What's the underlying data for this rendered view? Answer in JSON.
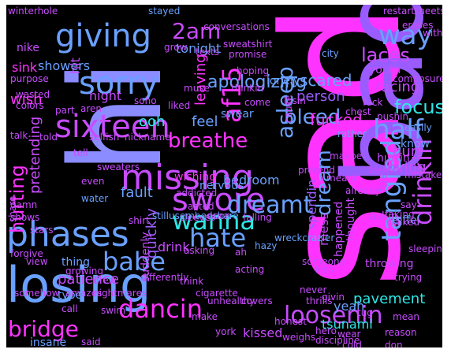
{
  "colors": {
    "magenta": "#ff33ff",
    "violet": "#c84cff",
    "purple": "#9b5cff",
    "periwinkle": "#8b8cff",
    "blue": "#6aa0ff",
    "cyan": "#2ee6e6",
    "background": "#000000"
  },
  "words": [
    {
      "text": "sad",
      "color": "magenta",
      "rot": -90
    },
    {
      "text": "bad",
      "color": "purple",
      "rot": -90
    },
    {
      "text": "hi",
      "color": "periwinkle",
      "rot": -90
    },
    {
      "text": "losing",
      "color": "blue",
      "rot": 0
    },
    {
      "text": "missing",
      "color": "violet",
      "rot": 0
    },
    {
      "text": "phases",
      "color": "blue",
      "rot": 0
    },
    {
      "text": "swore",
      "color": "violet",
      "rot": 0
    },
    {
      "text": "sixteen",
      "color": "violet",
      "rot": 0
    },
    {
      "text": "giving",
      "color": "blue",
      "rot": 0
    },
    {
      "text": "sorry",
      "color": "blue",
      "rot": 0
    },
    {
      "text": "dancin",
      "color": "magenta",
      "rot": 0
    },
    {
      "text": "loosenin",
      "color": "violet",
      "rot": 0
    },
    {
      "text": "tangled",
      "color": "blue",
      "rot": -90
    },
    {
      "text": "hate",
      "color": "blue",
      "rot": 0
    },
    {
      "text": "babe",
      "color": "blue",
      "rot": 0
    },
    {
      "text": "wanna",
      "color": "cyan",
      "rot": 0
    },
    {
      "text": "bridge",
      "color": "magenta",
      "rot": 0
    },
    {
      "text": "way",
      "color": "blue",
      "rot": 0
    },
    {
      "text": "half",
      "color": "blue",
      "rot": 0
    },
    {
      "text": "2am",
      "color": "violet",
      "rot": 0
    },
    {
      "text": "dreamt",
      "color": "blue",
      "rot": 0
    },
    {
      "text": "drinkin",
      "color": "violet",
      "rot": -90
    },
    {
      "text": "asleep",
      "color": "blue",
      "rot": -90
    },
    {
      "text": "af15",
      "color": "magenta",
      "rot": -90
    },
    {
      "text": "bleed",
      "color": "blue",
      "rot": 0
    },
    {
      "text": "breathe",
      "color": "magenta",
      "rot": 0
    },
    {
      "text": "focus",
      "color": "cyan",
      "rot": 0
    },
    {
      "text": "hurting",
      "color": "magenta",
      "rot": -90
    },
    {
      "text": "laces",
      "color": "violet",
      "rot": 0
    },
    {
      "text": "apologizing",
      "color": "blue",
      "rot": 0
    },
    {
      "text": "dream",
      "color": "blue",
      "rot": -90
    },
    {
      "text": "hurt",
      "color": "violet",
      "rot": 0
    },
    {
      "text": "racing",
      "color": "violet",
      "rot": 0
    },
    {
      "text": "loving",
      "color": "violet",
      "rot": 0
    },
    {
      "text": "scared",
      "color": "blue",
      "rot": 0
    },
    {
      "text": "person",
      "color": "purple",
      "rot": 0
    },
    {
      "text": "fucked",
      "color": "magenta",
      "rot": 0
    },
    {
      "text": "pretending",
      "color": "violet",
      "rot": -90
    },
    {
      "text": "patience",
      "color": "violet",
      "rot": 0
    },
    {
      "text": "quickly",
      "color": "purple",
      "rot": -90
    },
    {
      "text": "pavement",
      "color": "cyan",
      "rot": 0
    },
    {
      "text": "yeah",
      "color": "blue",
      "rot": 0
    },
    {
      "text": "tsunami",
      "color": "cyan",
      "rot": 0
    },
    {
      "text": "kissed",
      "color": "violet",
      "rot": 0
    },
    {
      "text": "mess",
      "color": "violet",
      "rot": -90
    },
    {
      "text": "spendin",
      "color": "purple",
      "rot": -90
    },
    {
      "text": "fuel",
      "color": "violet",
      "rot": -90
    },
    {
      "text": "fault",
      "color": "blue",
      "rot": 0
    },
    {
      "text": "feel",
      "color": "blue",
      "rot": 0
    },
    {
      "text": "wish",
      "color": "magenta",
      "rot": 0
    },
    {
      "text": "night",
      "color": "violet",
      "rot": 0
    },
    {
      "text": "ooh",
      "color": "cyan",
      "rot": 0
    },
    {
      "text": "showers",
      "color": "blue",
      "rot": 0
    },
    {
      "text": "tonight",
      "color": "blue",
      "rot": 0
    },
    {
      "text": "nike",
      "color": "violet",
      "rot": 0
    },
    {
      "text": "sink",
      "color": "magenta",
      "rot": 0
    },
    {
      "text": "hit",
      "color": "violet",
      "rot": -90
    },
    {
      "text": "leaving",
      "color": "magenta",
      "rot": -90
    },
    {
      "text": "bedroom",
      "color": "blue",
      "rot": 0
    },
    {
      "text": "wishing",
      "color": "magenta",
      "rot": 0
    },
    {
      "text": "drink",
      "color": "violet",
      "rot": 0
    },
    {
      "text": "thing",
      "color": "blue",
      "rot": 0
    },
    {
      "text": "type",
      "color": "blue",
      "rot": 0
    },
    {
      "text": "suddenly",
      "color": "violet",
      "rot": -90
    },
    {
      "text": "insane",
      "color": "blue",
      "rot": 0
    },
    {
      "text": "thought",
      "color": "violet",
      "rot": -90
    },
    {
      "text": "happened",
      "color": "violet",
      "rot": -90
    },
    {
      "text": "throwing",
      "color": "violet",
      "rot": 0
    },
    {
      "text": "know",
      "color": "blue",
      "rot": 0
    },
    {
      "text": "hurtin",
      "color": "violet",
      "rot": 0
    },
    {
      "text": "askin",
      "color": "violet",
      "rot": 0
    },
    {
      "text": "eiffel",
      "color": "blue",
      "rot": 0
    },
    {
      "text": "nervous",
      "color": "blue",
      "rot": 0
    },
    {
      "text": "swear",
      "color": "blue",
      "rot": 0
    },
    {
      "text": "lonely",
      "color": "blue",
      "rot": 0
    },
    {
      "text": "youth",
      "color": "violet",
      "rot": 0
    },
    {
      "text": "stayed",
      "color": "blue",
      "rot": 0
    },
    {
      "text": "conversations",
      "color": "violet",
      "rot": 0
    },
    {
      "text": "winterhole",
      "color": "violet",
      "rot": 0
    },
    {
      "text": "restart",
      "color": "violet",
      "rot": 0
    },
    {
      "text": "sheets",
      "color": "violet",
      "rot": 0
    },
    {
      "text": "sweatshirt",
      "color": "violet",
      "rot": 0
    },
    {
      "text": "erases",
      "color": "violet",
      "rot": 0
    },
    {
      "text": "without",
      "color": "violet",
      "rot": 0
    },
    {
      "text": "purpose",
      "color": "violet",
      "rot": 0
    },
    {
      "text": "grow",
      "color": "violet",
      "rot": 0
    },
    {
      "text": "texts",
      "color": "violet",
      "rot": 0
    },
    {
      "text": "promise",
      "color": "violet",
      "rot": 0
    },
    {
      "text": "city",
      "color": "blue",
      "rot": 0
    },
    {
      "text": "composure",
      "color": "violet",
      "rot": 0
    },
    {
      "text": "hoping",
      "color": "violet",
      "rot": 0
    },
    {
      "text": "wasted",
      "color": "violet",
      "rot": 0
    },
    {
      "text": "colors",
      "color": "violet",
      "rot": 0
    },
    {
      "text": "muse",
      "color": "violet",
      "rot": 0
    },
    {
      "text": "thinkin",
      "color": "violet",
      "rot": 0
    },
    {
      "text": "come",
      "color": "violet",
      "rot": 0
    },
    {
      "text": "part",
      "color": "violet",
      "rot": 0
    },
    {
      "text": "aren",
      "color": "violet",
      "rot": 0
    },
    {
      "text": "soho",
      "color": "violet",
      "rot": 0
    },
    {
      "text": "liked",
      "color": "violet",
      "rot": 0
    },
    {
      "text": "losin",
      "color": "violet",
      "rot": 0
    },
    {
      "text": "fuck",
      "color": "violet",
      "rot": 0
    },
    {
      "text": "chest",
      "color": "violet",
      "rot": 0
    },
    {
      "text": "pushin",
      "color": "violet",
      "rot": 0
    },
    {
      "text": "telling",
      "color": "magenta",
      "rot": 0
    },
    {
      "text": "cause",
      "color": "violet",
      "rot": -90
    },
    {
      "text": "easily",
      "color": "blue",
      "rot": 0
    },
    {
      "text": "talk",
      "color": "violet",
      "rot": 0
    },
    {
      "text": "told",
      "color": "violet",
      "rot": 0
    },
    {
      "text": "selfish",
      "color": "violet",
      "rot": 0
    },
    {
      "text": "nickname",
      "color": "violet",
      "rot": 0
    },
    {
      "text": "tell",
      "color": "violet",
      "rot": 0
    },
    {
      "text": "sweaters",
      "color": "violet",
      "rot": 0
    },
    {
      "text": "even",
      "color": "violet",
      "rot": 0
    },
    {
      "text": "water",
      "color": "blue",
      "rot": 0
    },
    {
      "text": "addicted",
      "color": "violet",
      "rot": 0
    },
    {
      "text": "acted",
      "color": "violet",
      "rot": 0
    },
    {
      "text": "sleeves",
      "color": "violet",
      "rot": 0
    },
    {
      "text": "pretend",
      "color": "violet",
      "rot": 0
    },
    {
      "text": "meant",
      "color": "violet",
      "rot": 0
    },
    {
      "text": "maybe",
      "color": "violet",
      "rot": 0
    },
    {
      "text": "lasted",
      "color": "violet",
      "rot": 0
    },
    {
      "text": "mistakes",
      "color": "violet",
      "rot": 0
    },
    {
      "text": "say",
      "color": "violet",
      "rot": 0
    },
    {
      "text": "taking",
      "color": "violet",
      "rot": 0
    },
    {
      "text": "rather",
      "color": "blue",
      "rot": 0
    },
    {
      "text": "already",
      "color": "violet",
      "rot": 0
    },
    {
      "text": "damn",
      "color": "violet",
      "rot": 0
    },
    {
      "text": "shows",
      "color": "violet",
      "rot": 0
    },
    {
      "text": "share",
      "color": "violet",
      "rot": -90
    },
    {
      "text": "stars",
      "color": "violet",
      "rot": 0
    },
    {
      "text": "shirt",
      "color": "violet",
      "rot": 0
    },
    {
      "text": "stillusembedshare",
      "color": "blue",
      "rot": 0
    },
    {
      "text": "noon",
      "color": "violet",
      "rot": 0
    },
    {
      "text": "falling",
      "color": "violet",
      "rot": 0
    },
    {
      "text": "wreckcrazier",
      "color": "blue",
      "rot": 0
    },
    {
      "text": "hazy",
      "color": "blue",
      "rot": 0
    },
    {
      "text": "walked",
      "color": "violet",
      "rot": 0
    },
    {
      "text": "forgive",
      "color": "violet",
      "rot": 0
    },
    {
      "text": "view",
      "color": "violet",
      "rot": 0
    },
    {
      "text": "asking",
      "color": "violet",
      "rot": 0
    },
    {
      "text": "ah",
      "color": "violet",
      "rot": 0
    },
    {
      "text": "acting",
      "color": "violet",
      "rot": 0
    },
    {
      "text": "someone",
      "color": "violet",
      "rot": 0
    },
    {
      "text": "kiss",
      "color": "violet",
      "rot": 0
    },
    {
      "text": "trying",
      "color": "violet",
      "rot": 0
    },
    {
      "text": "sleeping",
      "color": "violet",
      "rot": 0
    },
    {
      "text": "growing",
      "color": "violet",
      "rot": 0
    },
    {
      "text": "drew",
      "color": "violet",
      "rot": 0
    },
    {
      "text": "differently",
      "color": "violet",
      "rot": 0
    },
    {
      "text": "think",
      "color": "violet",
      "rot": 0
    },
    {
      "text": "never",
      "color": "violet",
      "rot": 0
    },
    {
      "text": "somehow",
      "color": "violet",
      "rot": 0
    },
    {
      "text": "amazes",
      "color": "violet",
      "rot": 0
    },
    {
      "text": "nightmares",
      "color": "violet",
      "rot": 0
    },
    {
      "text": "cigarette",
      "color": "violet",
      "rot": 0
    },
    {
      "text": "call",
      "color": "violet",
      "rot": 0
    },
    {
      "text": "swim",
      "color": "violet",
      "rot": 0
    },
    {
      "text": "unhealthy",
      "color": "violet",
      "rot": 0
    },
    {
      "text": "covers",
      "color": "violet",
      "rot": 0
    },
    {
      "text": "thrills",
      "color": "violet",
      "rot": 0
    },
    {
      "text": "givin",
      "color": "violet",
      "rot": 0
    },
    {
      "text": "tug",
      "color": "violet",
      "rot": 0
    },
    {
      "text": "mean",
      "color": "violet",
      "rot": 0
    },
    {
      "text": "make",
      "color": "violet",
      "rot": 0
    },
    {
      "text": "honest",
      "color": "violet",
      "rot": 0
    },
    {
      "text": "hero",
      "color": "violet",
      "rot": 0
    },
    {
      "text": "wear",
      "color": "violet",
      "rot": 0
    },
    {
      "text": "reason",
      "color": "violet",
      "rot": 0
    },
    {
      "text": "york",
      "color": "violet",
      "rot": 0
    },
    {
      "text": "weighs",
      "color": "violet",
      "rot": 0
    },
    {
      "text": "discipline",
      "color": "violet",
      "rot": 0
    },
    {
      "text": "cold",
      "color": "violet",
      "rot": 0
    },
    {
      "text": "don",
      "color": "violet",
      "rot": 0
    },
    {
      "text": "said",
      "color": "violet",
      "rot": 0
    }
  ]
}
